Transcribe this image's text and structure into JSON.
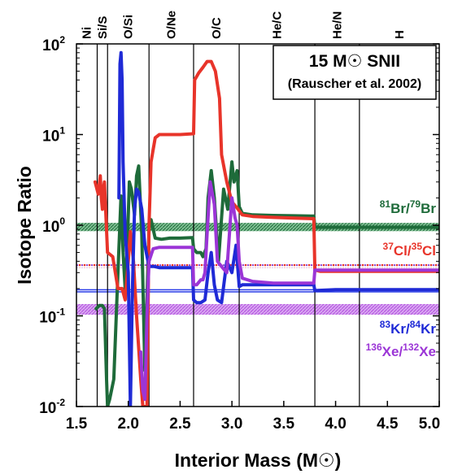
{
  "chart_data": {
    "type": "line",
    "title": "15 M☉ SNII",
    "subtitle": "(Rauscher et al. 2002)",
    "xlabel": "Interior Mass (M☉)",
    "ylabel": "Isotope Ratio",
    "xlim": [
      1.5,
      5.0
    ],
    "ylim": [
      0.01,
      100
    ],
    "y_scale": "log",
    "x_ticks": [
      {
        "value": 1.5,
        "label": "1.5"
      },
      {
        "value": 2.0,
        "label": "2.0"
      },
      {
        "value": 2.5,
        "label": "2.5"
      },
      {
        "value": 3.0,
        "label": "3.0"
      },
      {
        "value": 3.5,
        "label": "3.5"
      },
      {
        "value": 4.0,
        "label": "4.0"
      },
      {
        "value": 4.5,
        "label": "4.5"
      },
      {
        "value": 5.0,
        "label": "5.0"
      }
    ],
    "y_ticks": [
      {
        "value": 0.01,
        "base": "10",
        "exp": "-2"
      },
      {
        "value": 0.1,
        "base": "10",
        "exp": "-1"
      },
      {
        "value": 1,
        "base": "10",
        "exp": "0"
      },
      {
        "value": 10,
        "base": "10",
        "exp": "1"
      },
      {
        "value": 100,
        "base": "10",
        "exp": "2"
      }
    ],
    "zones": [
      {
        "label": "Ni",
        "start": 1.5,
        "end": 1.7
      },
      {
        "label": "Si/S",
        "start": 1.7,
        "end": 1.8
      },
      {
        "label": "O/Si",
        "start": 1.8,
        "end": 2.2
      },
      {
        "label": "O/Ne",
        "start": 2.2,
        "end": 2.63
      },
      {
        "label": "O/C",
        "start": 2.63,
        "end": 3.07
      },
      {
        "label": "He/C",
        "start": 3.07,
        "end": 3.8
      },
      {
        "label": "He/N",
        "start": 3.8,
        "end": 4.23
      },
      {
        "label": "H",
        "start": 4.23,
        "end": 5.0
      }
    ],
    "zone_boundaries": [
      1.7,
      1.8,
      2.2,
      2.63,
      3.07,
      3.8,
      4.23
    ],
    "solar_bands": [
      {
        "series": "81Br/79Br",
        "low": 0.86,
        "high": 1.06,
        "color": "#1e6b3a",
        "style": "band"
      },
      {
        "series": "37Cl/35Cl",
        "low": 0.34,
        "high": 0.38,
        "color": "#e8342a",
        "style": "dotted"
      },
      {
        "series": "37Cl/35Cl-b",
        "low": 0.34,
        "high": 0.37,
        "color": "#8b3ed1",
        "style": "dotted"
      },
      {
        "series": "83Kr/84Kr",
        "low": 0.184,
        "high": 0.194,
        "color": "#2a3de8",
        "style": "line"
      },
      {
        "series": "136Xe/132Xe",
        "low": 0.103,
        "high": 0.135,
        "color": "#b24de0",
        "style": "band"
      }
    ],
    "series": [
      {
        "name": "81Br/79Br",
        "label_parts": [
          [
            "sup",
            "81"
          ],
          [
            "txt",
            "Br/"
          ],
          [
            "sup",
            "79"
          ],
          [
            "txt",
            "Br"
          ]
        ],
        "color": "#1e6b3a",
        "x": [
          1.69,
          1.72,
          1.75,
          1.77,
          1.79,
          1.8,
          1.82,
          1.86,
          1.9,
          1.93,
          1.95,
          1.97,
          1.99,
          2.01,
          2.03,
          2.06,
          2.08,
          2.1,
          2.13,
          2.16,
          2.2,
          2.22,
          2.26,
          2.32,
          2.4,
          2.5,
          2.62,
          2.63,
          2.66,
          2.7,
          2.72,
          2.75,
          2.77,
          2.8,
          2.83,
          2.87,
          2.92,
          2.96,
          3.0,
          3.02,
          3.05,
          3.07,
          3.1,
          3.2,
          3.4,
          3.6,
          3.79,
          3.8,
          3.9,
          4.2,
          4.5,
          4.8,
          5.0
        ],
        "y": [
          0.12,
          0.13,
          0.13,
          0.12,
          0.02,
          0.01,
          0.012,
          0.02,
          0.3,
          2.1,
          0.5,
          0.2,
          0.55,
          3.0,
          2.5,
          1.3,
          3.5,
          4.5,
          0.8,
          0.025,
          0.9,
          1.15,
          0.72,
          0.7,
          0.72,
          0.72,
          0.73,
          0.55,
          0.5,
          0.5,
          0.45,
          0.55,
          2.0,
          4.0,
          2.0,
          0.4,
          2.5,
          1.5,
          5.0,
          3.0,
          4.0,
          1.6,
          1.35,
          1.3,
          1.28,
          1.27,
          1.26,
          0.95,
          0.95,
          0.95,
          0.95,
          0.95,
          0.95
        ]
      },
      {
        "name": "37Cl/35Cl",
        "label_parts": [
          [
            "sup",
            "37"
          ],
          [
            "txt",
            "Cl/"
          ],
          [
            "sup",
            "35"
          ],
          [
            "txt",
            "Cl"
          ]
        ],
        "color": "#e8342a",
        "x": [
          1.68,
          1.71,
          1.73,
          1.74,
          1.75,
          1.76,
          1.77,
          1.8,
          1.85,
          1.9,
          1.94,
          1.97,
          2.0,
          2.02,
          2.05,
          2.08,
          2.12,
          2.14,
          2.16,
          2.18,
          2.2,
          2.22,
          2.26,
          2.3,
          2.4,
          2.5,
          2.63,
          2.64,
          2.68,
          2.72,
          2.76,
          2.8,
          2.84,
          2.88,
          2.9,
          2.95,
          3.0,
          3.04,
          3.1,
          3.2,
          3.4,
          3.6,
          3.79,
          3.8,
          3.85,
          4.2,
          4.6,
          5.0
        ],
        "y": [
          3.0,
          2.2,
          3.5,
          2.0,
          1.5,
          2.5,
          3.0,
          0.5,
          0.45,
          0.2,
          0.2,
          0.15,
          0.4,
          0.85,
          0.4,
          0.1,
          0.02,
          0.01,
          0.01,
          0.01,
          1.0,
          5.0,
          9.2,
          10.0,
          10.0,
          10.0,
          10.2,
          40.0,
          48.0,
          55.0,
          64.0,
          64.0,
          50.0,
          25.0,
          6.0,
          3.0,
          1.8,
          1.6,
          1.3,
          1.25,
          1.22,
          1.2,
          1.18,
          0.32,
          0.31,
          0.31,
          0.31,
          0.31
        ]
      },
      {
        "name": "83Kr/84Kr",
        "label_parts": [
          [
            "sup",
            "83"
          ],
          [
            "txt",
            "Kr/"
          ],
          [
            "sup",
            "84"
          ],
          [
            "txt",
            "Kr"
          ]
        ],
        "color": "#1f2ad6",
        "x": [
          1.91,
          1.92,
          1.93,
          1.94,
          1.95,
          1.97,
          2.0,
          2.02,
          2.04,
          2.06,
          2.08,
          2.1,
          2.13,
          2.16,
          2.2,
          2.25,
          2.3,
          2.4,
          2.5,
          2.62,
          2.63,
          2.66,
          2.7,
          2.74,
          2.77,
          2.8,
          2.83,
          2.86,
          2.9,
          2.95,
          3.0,
          3.04,
          3.07,
          3.1,
          3.2,
          3.4,
          3.6,
          3.79,
          3.8,
          4.0,
          4.5,
          5.0
        ],
        "y": [
          2.0,
          60.0,
          80.0,
          40.0,
          5.0,
          0.8,
          0.3,
          0.01,
          0.2,
          1.5,
          2.5,
          2.3,
          1.5,
          0.6,
          0.35,
          0.35,
          0.34,
          0.34,
          0.34,
          0.34,
          0.15,
          0.14,
          0.14,
          0.15,
          0.3,
          0.5,
          0.22,
          0.15,
          0.14,
          0.4,
          0.3,
          0.6,
          0.21,
          0.22,
          0.22,
          0.22,
          0.22,
          0.22,
          0.19,
          0.195,
          0.195,
          0.195
        ]
      },
      {
        "name": "136Xe/132Xe",
        "label_parts": [
          [
            "sup",
            "136"
          ],
          [
            "txt",
            "Xe/"
          ],
          [
            "sup",
            "132"
          ],
          [
            "txt",
            "Xe"
          ]
        ],
        "color": "#9b35d6",
        "x": [
          2.12,
          2.14,
          2.16,
          2.18,
          2.2,
          2.24,
          2.3,
          2.4,
          2.5,
          2.62,
          2.63,
          2.66,
          2.7,
          2.72,
          2.74,
          2.76,
          2.79,
          2.83,
          2.86,
          2.9,
          2.95,
          3.0,
          3.03,
          3.05,
          3.07,
          3.1,
          3.2,
          3.4,
          3.6,
          3.79,
          3.8,
          4.0,
          4.5,
          5.0
        ],
        "y": [
          0.04,
          0.015,
          0.012,
          0.1,
          0.4,
          0.55,
          0.57,
          0.57,
          0.57,
          0.57,
          0.22,
          0.22,
          0.25,
          0.25,
          0.3,
          0.8,
          3.0,
          1.7,
          0.4,
          0.35,
          0.3,
          2.0,
          1.2,
          1.0,
          0.4,
          0.26,
          0.24,
          0.23,
          0.23,
          0.23,
          0.32,
          0.32,
          0.32,
          0.32
        ]
      }
    ],
    "legend_placement": "right, beside each ratio's solar band"
  }
}
